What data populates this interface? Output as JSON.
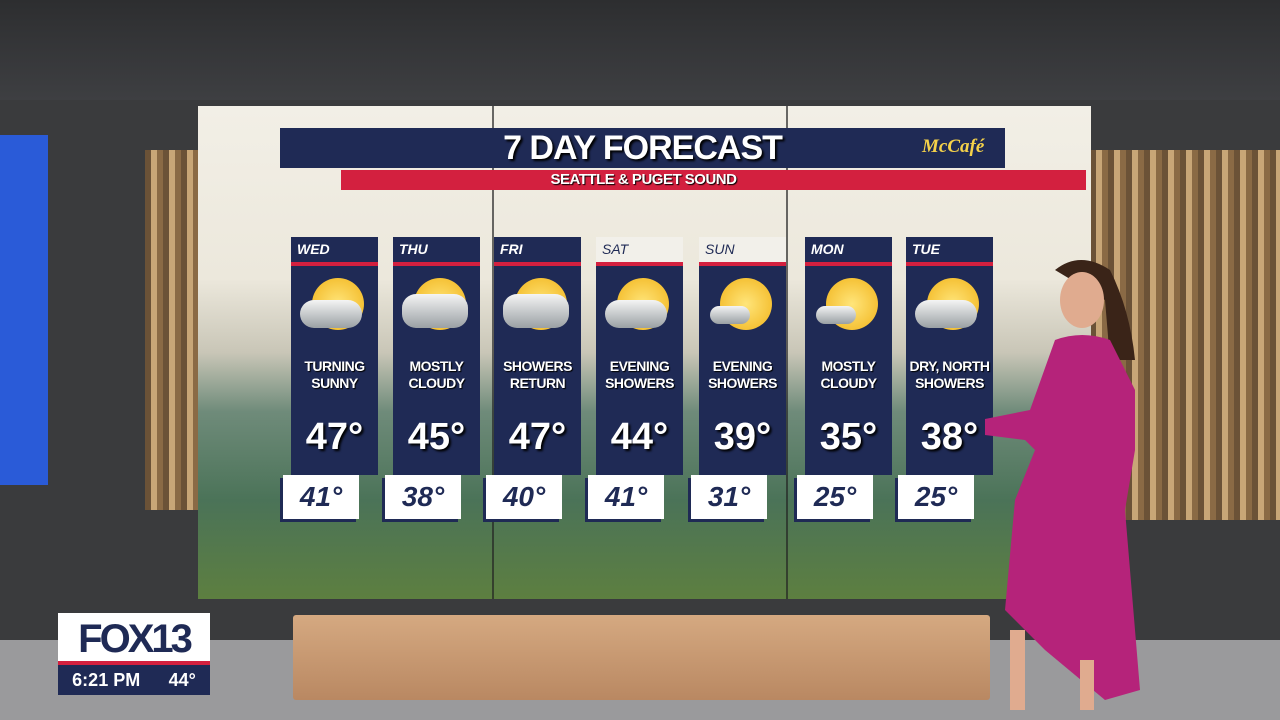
{
  "graphic": {
    "title": "7 DAY FORECAST",
    "subtitle": "SEATTLE & PUGET SOUND",
    "sponsor": "McCafé"
  },
  "days": [
    {
      "day": "WED",
      "condition": "TURNING SUNNY",
      "high": "47°",
      "low": "41°",
      "icon": "partly-sunny-icon"
    },
    {
      "day": "THU",
      "condition": "MOSTLY CLOUDY",
      "high": "45°",
      "low": "38°",
      "icon": "mostly-cloudy-icon"
    },
    {
      "day": "FRI",
      "condition": "SHOWERS RETURN",
      "high": "47°",
      "low": "40°",
      "icon": "showers-icon"
    },
    {
      "day": "SAT",
      "condition": "EVENING SHOWERS",
      "high": "44°",
      "low": "41°",
      "icon": "showers-icon"
    },
    {
      "day": "SUN",
      "condition": "EVENING SHOWERS",
      "high": "39°",
      "low": "31°",
      "icon": "mostly-sunny-icon"
    },
    {
      "day": "MON",
      "condition": "MOSTLY CLOUDY",
      "high": "35°",
      "low": "25°",
      "icon": "mostly-sunny-icon"
    },
    {
      "day": "TUE",
      "condition": "DRY, NORTH SHOWERS",
      "high": "38°",
      "low": "25°",
      "icon": "partly-cloudy-icon"
    }
  ],
  "bug": {
    "station": "FOX13",
    "time": "6:21 PM",
    "temperature": "44°"
  },
  "colors": {
    "navy": "#1f2a55",
    "red": "#d3203f",
    "dress": "#b5237a"
  }
}
